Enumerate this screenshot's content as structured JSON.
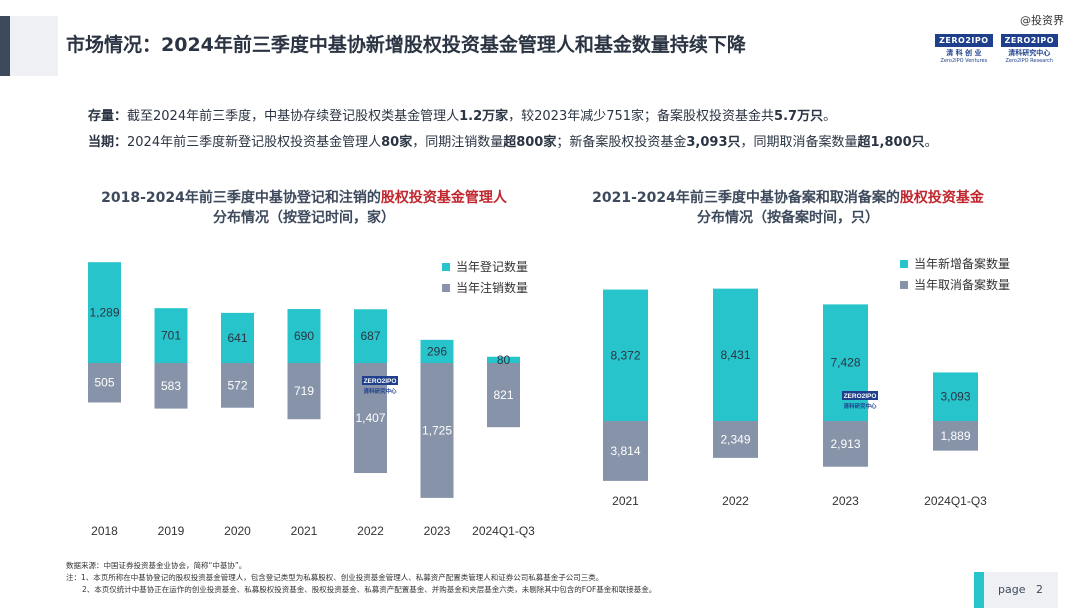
{
  "header": {
    "title": "市场情况：2024年前三季度中基协新增股权投资基金管理人和基金数量持续下降",
    "watermark": "@投资界",
    "logo1": {
      "box": "ZERO2IPO",
      "cn": "清 科 创 业",
      "en": "Zero2IPO Ventures"
    },
    "logo2": {
      "box": "ZERO2IPO",
      "cn": "清科研究中心",
      "en": "Zero2IPO Research"
    }
  },
  "summary": {
    "stock_label": "存量：",
    "stock_t1": "截至2024年前三季度，中基协存续登记股权类基金管理人",
    "stock_b1": "1.2万家",
    "stock_t2": "，较2023年减少751家；备案股权投资基金共",
    "stock_b2": "5.7万只",
    "stock_t3": "。",
    "period_label": "当期：",
    "period_t1": "2024年前三季度新登记股权投资基金管理人",
    "period_b1": "80家",
    "period_t2": "，同期注销数量",
    "period_b2": "超800家",
    "period_t3": "；新备案股权投资基金",
    "period_b3": "3,093只",
    "period_t4": "，同期取消备案数量",
    "period_b4": "超1,800只",
    "period_t5": "。"
  },
  "colors": {
    "registered": "#27c4cc",
    "cancelled": "#8693a8",
    "title_red": "#c0262e"
  },
  "chart_data": [
    {
      "type": "bar",
      "title_line1_a": "2018-2024年前三季度中基协登记和注销的",
      "title_line1_red": "股权投资基金管理人",
      "title_line2": "分布情况（按登记时间，家）",
      "categories": [
        "2018",
        "2019",
        "2020",
        "2021",
        "2022",
        "2023",
        "2024Q1-Q3"
      ],
      "series": [
        {
          "name": "当年登记数量",
          "values": [
            1289,
            701,
            641,
            690,
            687,
            296,
            80
          ]
        },
        {
          "name": "当年注销数量",
          "values": [
            505,
            583,
            572,
            719,
            1407,
            1725,
            821
          ]
        }
      ],
      "value_labels_registered": [
        "1,289",
        "701",
        "641",
        "690",
        "687",
        "296",
        "80"
      ],
      "value_labels_cancelled": [
        "505",
        "583",
        "572",
        "719",
        "1,407",
        "1,725",
        "821"
      ],
      "legend": "top-right"
    },
    {
      "type": "bar",
      "title_line1_a": "2021-2024年前三季度中基协备案和取消备案的",
      "title_line1_red": "股权投资基金",
      "title_line2": "分布情况（按备案时间，只）",
      "categories": [
        "2021",
        "2022",
        "2023",
        "2024Q1-Q3"
      ],
      "series": [
        {
          "name": "当年新增备案数量",
          "values": [
            8372,
            8431,
            7428,
            3093
          ]
        },
        {
          "name": "当年取消备案数量",
          "values": [
            3814,
            2349,
            2913,
            1889
          ]
        }
      ],
      "value_labels_registered": [
        "8,372",
        "8,431",
        "7,428",
        "3,093"
      ],
      "value_labels_cancelled": [
        "3,814",
        "2,349",
        "2,913",
        "1,889"
      ],
      "legend": "top-right"
    }
  ],
  "footnotes": {
    "line1": "数据来源：中国证券投资基金业协会，简称“中基协”。",
    "line2": "注：1、本页所称在中基协登记的股权投资基金管理人，包含登记类型为私募股权、创业投资基金管理人、私募资产配置类管理人和证券公司私募基金子公司三类。",
    "line3": "2、本页仅统计中基协正在运作的创业投资基金、私募股权投资基金、股权投资基金、私募资产配置基金、并购基金和夹层基金六类，未剔除其中包含的FOF基金和联接基金。"
  },
  "page": {
    "label": "page",
    "number": "2"
  }
}
